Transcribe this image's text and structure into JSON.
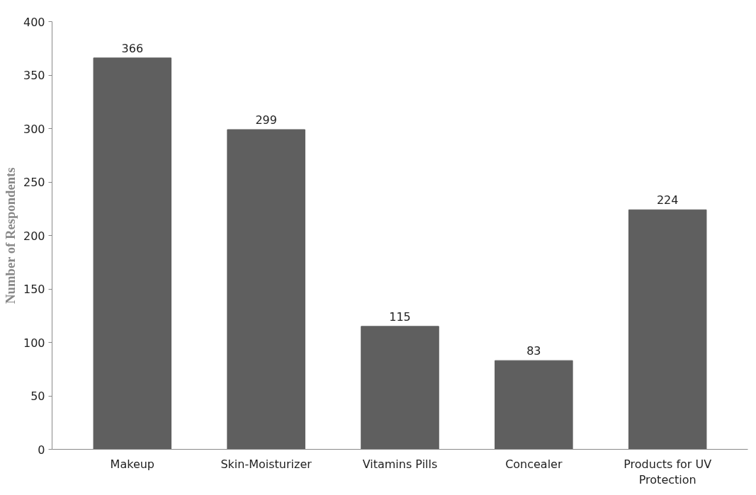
{
  "chart_data": {
    "type": "bar",
    "ylabel": "Number of Respondents",
    "categories": [
      "Makeup",
      "Skin-Moisturizer",
      "Vitamins Pills",
      "Concealer",
      "Products for UV Protection"
    ],
    "values": [
      366,
      299,
      115,
      83,
      224
    ],
    "color": "#5f5f5f",
    "ylim": [
      0,
      400
    ],
    "yticks": [
      0,
      50,
      100,
      150,
      200,
      250,
      300,
      350,
      400
    ],
    "grid": false,
    "data_labels": true
  }
}
